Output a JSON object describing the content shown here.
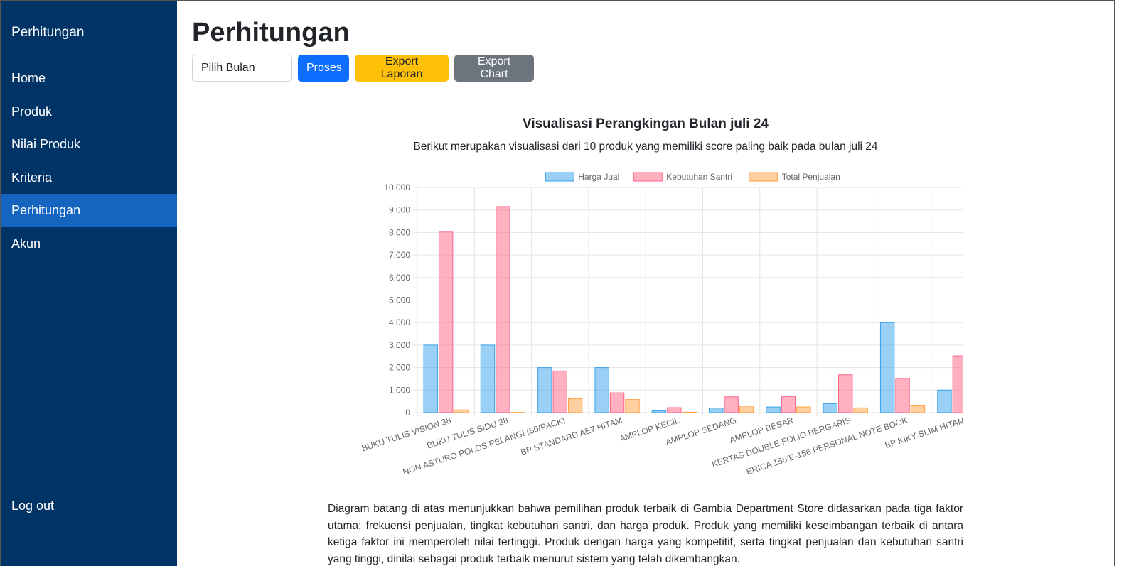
{
  "sidebar": {
    "brand": "Perhitungan",
    "items": [
      {
        "label": "Home"
      },
      {
        "label": "Produk"
      },
      {
        "label": "Nilai Produk"
      },
      {
        "label": "Kriteria"
      },
      {
        "label": "Perhitungan",
        "active": true
      },
      {
        "label": "Akun"
      }
    ],
    "logout": "Log out"
  },
  "header": {
    "title": "Perhitungan"
  },
  "toolbar": {
    "month_placeholder": "Pilih Bulan",
    "process_label": "Proses",
    "export_report_label": "Export Laporan",
    "export_chart_label": "Export Chart"
  },
  "chart_section": {
    "title": "Visualisasi Perangkingan Bulan juli 24",
    "subtitle": "Berikut merupakan visualisasi dari 10 produk yang memiliki score paling baik pada bulan juli 24"
  },
  "chart_data": {
    "type": "bar",
    "categories": [
      "BUKU TULIS VISION 38",
      "BUKU TULIS SIDU 38",
      "NON ASTURO POLOS/PELANGI (50/PACK)",
      "BP STANDARD AE7 HITAM",
      "AMPLOP KECIL",
      "AMPLOP SEDANG",
      "AMPLOP BESAR",
      "KERTAS DOUBLE FOLIO BERGARIS",
      "ERICA 156/E-156 PERSONAL NOTE BOOK",
      "BP KIKY SLIM HITAM"
    ],
    "series": [
      {
        "name": "Harga Jual",
        "color": "#36a2eb",
        "values": [
          3000,
          3000,
          2000,
          2000,
          80,
          200,
          250,
          400,
          4000,
          1000
        ]
      },
      {
        "name": "Kebutuhan Santri",
        "color": "#ff6384",
        "values": [
          8050,
          9150,
          1850,
          880,
          220,
          700,
          720,
          1680,
          1520,
          2520
        ]
      },
      {
        "name": "Total Penjualan",
        "color": "#ff9f40",
        "values": [
          120,
          10,
          620,
          580,
          20,
          290,
          250,
          210,
          330,
          150
        ]
      }
    ],
    "ylim": [
      0,
      10000
    ],
    "y_ticks": [
      "0",
      "1.000",
      "2.000",
      "3.000",
      "4.000",
      "5.000",
      "6.000",
      "7.000",
      "8.000",
      "9.000",
      "10.000"
    ],
    "legend_position": "top",
    "grid": true
  },
  "description": "Diagram batang di atas menunjukkan bahwa pemilihan produk terbaik di Gambia Department Store didasarkan pada tiga faktor utama: frekuensi penjualan, tingkat kebutuhan santri, dan harga produk. Produk yang memiliki keseimbangan terbaik di antara ketiga faktor ini memperoleh nilai tertinggi. Produk dengan harga yang kompetitif, serta tingkat penjualan dan kebutuhan santri yang tinggi, dinilai sebagai produk terbaik menurut sistem yang telah dikembangkan."
}
